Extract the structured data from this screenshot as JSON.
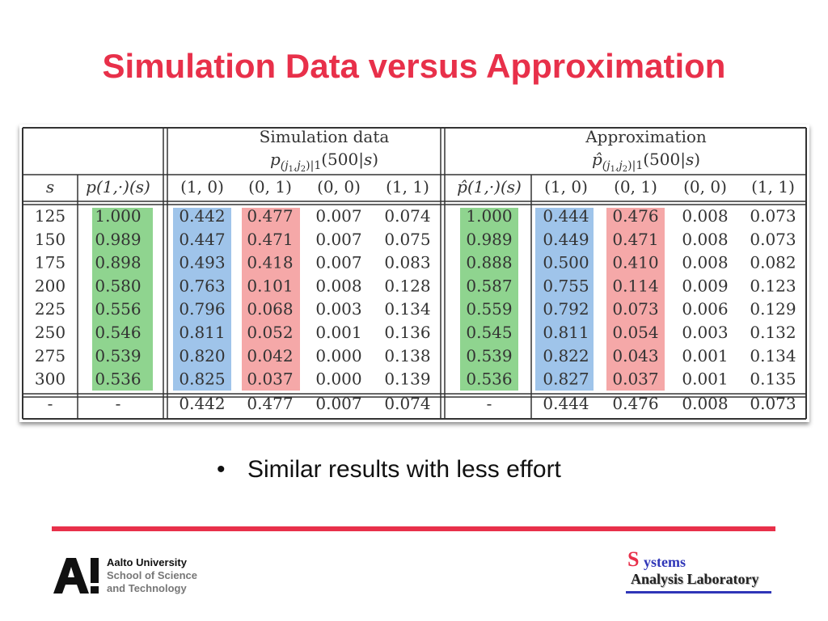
{
  "slide": {
    "title": "Simulation Data versus Approximation",
    "bullet": "Similar results with less effort"
  },
  "table": {
    "group_sim": "Simulation data",
    "group_approx": "Approximation",
    "headers": [
      "s",
      "p(1,·)(s)",
      "(1, 0)",
      "(0, 1)",
      "(0, 0)",
      "(1, 1)",
      "p̂(1,·)(s)",
      "(1, 0)",
      "(0, 1)",
      "(0, 0)",
      "(1, 1)"
    ],
    "rows": [
      [
        "125",
        "1.000",
        "0.442",
        "0.477",
        "0.007",
        "0.074",
        "1.000",
        "0.444",
        "0.476",
        "0.008",
        "0.073"
      ],
      [
        "150",
        "0.989",
        "0.447",
        "0.471",
        "0.007",
        "0.075",
        "0.989",
        "0.449",
        "0.471",
        "0.008",
        "0.073"
      ],
      [
        "175",
        "0.898",
        "0.493",
        "0.418",
        "0.007",
        "0.083",
        "0.888",
        "0.500",
        "0.410",
        "0.008",
        "0.082"
      ],
      [
        "200",
        "0.580",
        "0.763",
        "0.101",
        "0.008",
        "0.128",
        "0.587",
        "0.755",
        "0.114",
        "0.009",
        "0.123"
      ],
      [
        "225",
        "0.556",
        "0.796",
        "0.068",
        "0.003",
        "0.134",
        "0.559",
        "0.792",
        "0.073",
        "0.006",
        "0.129"
      ],
      [
        "250",
        "0.546",
        "0.811",
        "0.052",
        "0.001",
        "0.136",
        "0.545",
        "0.811",
        "0.054",
        "0.003",
        "0.132"
      ],
      [
        "275",
        "0.539",
        "0.820",
        "0.042",
        "0.000",
        "0.138",
        "0.539",
        "0.822",
        "0.043",
        "0.001",
        "0.134"
      ],
      [
        "300",
        "0.536",
        "0.825",
        "0.037",
        "0.000",
        "0.139",
        "0.536",
        "0.827",
        "0.037",
        "0.001",
        "0.135"
      ]
    ],
    "last_row": [
      "-",
      "-",
      "0.442",
      "0.477",
      "0.007",
      "0.074",
      "-",
      "0.444",
      "0.476",
      "0.008",
      "0.073"
    ],
    "highlight_colors": {
      "green": "#8fd48f",
      "blue": "#9fc4ea",
      "red": "#f5a8a8"
    }
  },
  "logos": {
    "aalto_mark": "A!",
    "aalto_line1": "Aalto University",
    "aalto_line2": "School of Science",
    "aalto_line3": "and Technology",
    "sal_letter": "S",
    "sal_rest": "ystems",
    "sal_line2": "Analysis Laboratory"
  },
  "colors": {
    "title_red": "#e8304a",
    "sal_blue": "#2f36b8"
  }
}
